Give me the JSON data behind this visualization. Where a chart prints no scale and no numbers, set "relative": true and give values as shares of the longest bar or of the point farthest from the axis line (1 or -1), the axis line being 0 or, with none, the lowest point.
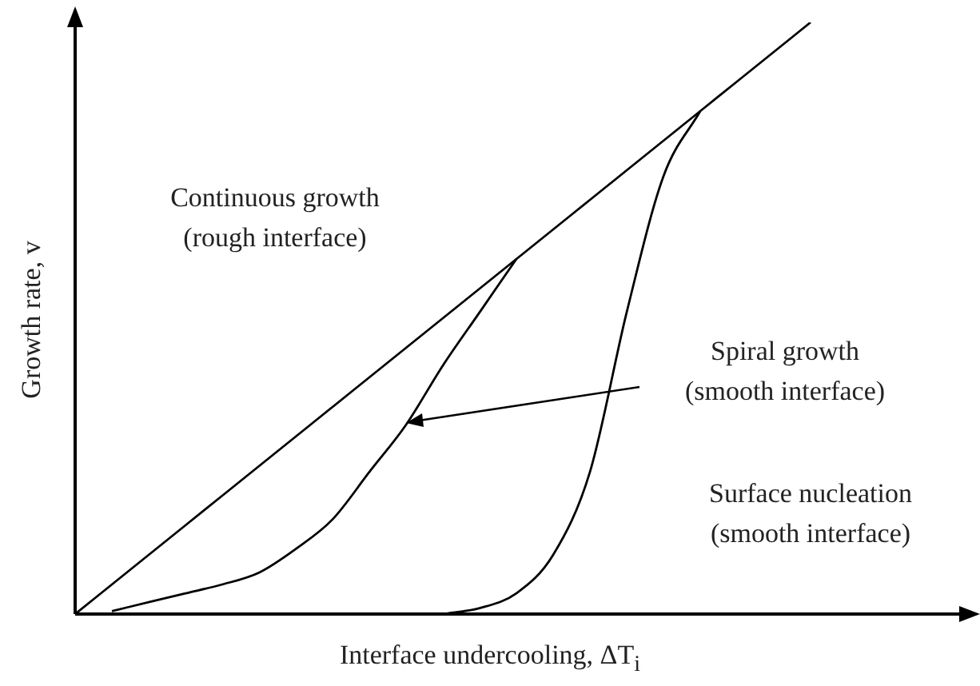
{
  "chart_data": {
    "type": "line",
    "relative": true,
    "xlabel": "Interface undercooling, ΔT$_{i}$",
    "ylabel": "Growth rate, v",
    "categories": [
      null,
      null,
      null,
      null,
      null,
      null,
      null,
      null,
      null,
      null,
      null,
      null,
      null,
      null,
      null,
      null,
      null,
      null,
      null,
      null,
      null
    ],
    "marker": "none",
    "line_style": "solid",
    "legend": false,
    "annotations": [
      "Continuous growth (rough interface)",
      "Spiral growth (smooth interface)",
      "Surface nucleation (smooth interface)"
    ],
    "series": [
      {
        "color": "#000000",
        "values": [
          0,
          0.05,
          0.1,
          0.15,
          0.2,
          0.25,
          0.3,
          0.35,
          0.4,
          0.45,
          0.5,
          0.55,
          0.6,
          0.65,
          0.7,
          0.75,
          0.8,
          0.85,
          0.9,
          0.95,
          1
        ]
      },
      {
        "color": "#000000",
        "values": [
          null,
          0.005,
          0.02,
          0.035,
          0.05,
          0.07,
          0.11,
          0.16,
          0.24,
          0.32,
          0.42,
          0.51,
          0.6,
          null,
          null,
          null,
          null,
          null,
          null,
          null,
          null
        ]
      },
      {
        "color": "#000000",
        "values": [
          null,
          null,
          null,
          null,
          null,
          null,
          null,
          null,
          null,
          null,
          0,
          0.01,
          0.035,
          0.1,
          0.24,
          0.51,
          0.74,
          0.85,
          null,
          null,
          null
        ]
      }
    ]
  }
}
